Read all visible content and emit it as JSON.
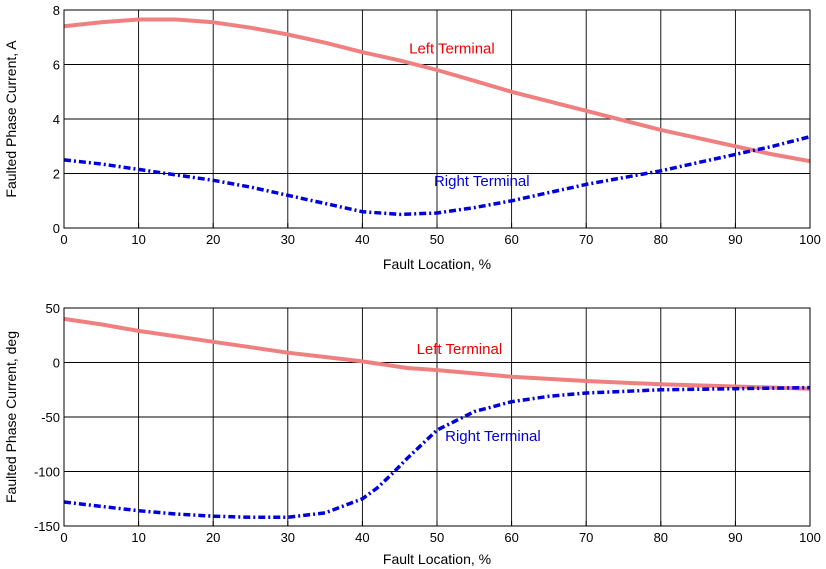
{
  "chart_data": [
    {
      "type": "line",
      "title": "",
      "xlabel": "Fault Location, %",
      "ylabel": "Faulted Phase Current, A",
      "xlim": [
        0,
        100
      ],
      "ylim": [
        0,
        8
      ],
      "xticks": [
        0,
        10,
        20,
        30,
        40,
        50,
        60,
        70,
        80,
        90,
        100
      ],
      "yticks": [
        0,
        2,
        4,
        6,
        8
      ],
      "grid": true,
      "x": [
        0,
        5,
        10,
        15,
        20,
        25,
        30,
        35,
        40,
        45,
        50,
        55,
        60,
        65,
        70,
        75,
        80,
        85,
        90,
        95,
        100
      ],
      "series": [
        {
          "name": "Left Terminal",
          "color": "#f08080",
          "style": "solid",
          "values": [
            7.4,
            7.55,
            7.65,
            7.65,
            7.55,
            7.35,
            7.1,
            6.8,
            6.45,
            6.15,
            5.8,
            5.4,
            5.0,
            4.65,
            4.3,
            3.95,
            3.6,
            3.3,
            3.0,
            2.7,
            2.45
          ]
        },
        {
          "name": "Right Terminal",
          "color": "#0000dd",
          "style": "dashdot",
          "values": [
            2.5,
            2.35,
            2.15,
            1.95,
            1.75,
            1.5,
            1.2,
            0.9,
            0.6,
            0.5,
            0.55,
            0.75,
            1.0,
            1.3,
            1.6,
            1.85,
            2.1,
            2.4,
            2.7,
            3.0,
            3.35
          ]
        }
      ],
      "annotations": [
        {
          "text": "Left Terminal",
          "x": 52,
          "y": 6.4,
          "color": "#ee0000"
        },
        {
          "text": "Right Terminal",
          "x": 56,
          "y": 1.55,
          "color": "#0000dd"
        }
      ]
    },
    {
      "type": "line",
      "title": "",
      "xlabel": "Fault Location, %",
      "ylabel": "Faulted Phase Current, deg",
      "xlim": [
        0,
        100
      ],
      "ylim": [
        -150,
        50
      ],
      "xticks": [
        0,
        10,
        20,
        30,
        40,
        50,
        60,
        70,
        80,
        90,
        100
      ],
      "yticks": [
        -150,
        -100,
        -50,
        0,
        50
      ],
      "grid": true,
      "x": [
        0,
        5,
        10,
        15,
        20,
        25,
        30,
        35,
        40,
        42,
        44,
        46,
        48,
        50,
        55,
        60,
        65,
        70,
        80,
        90,
        100
      ],
      "series": [
        {
          "name": "Left Terminal",
          "color": "#f08080",
          "style": "solid",
          "values": [
            40,
            35,
            29,
            24,
            19,
            14,
            9,
            5,
            1,
            -1,
            -3,
            -5,
            -6,
            -7,
            -10,
            -13,
            -15,
            -17,
            -20,
            -22,
            -24
          ]
        },
        {
          "name": "Right Terminal",
          "color": "#0000dd",
          "style": "dashdot",
          "values": [
            -128,
            -132,
            -136,
            -139,
            -141,
            -142,
            -142,
            -138,
            -125,
            -115,
            -102,
            -88,
            -75,
            -62,
            -45,
            -36,
            -31,
            -28,
            -25,
            -24,
            -23
          ]
        }
      ],
      "annotations": [
        {
          "text": "Left Terminal",
          "x": 53,
          "y": 8,
          "color": "#ee0000"
        },
        {
          "text": "Right Terminal",
          "x": 57.5,
          "y": -72,
          "color": "#0000dd"
        }
      ]
    }
  ]
}
